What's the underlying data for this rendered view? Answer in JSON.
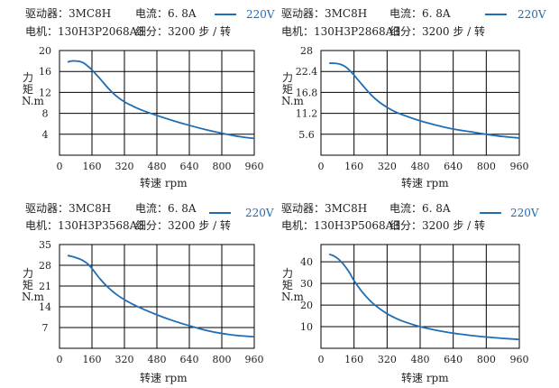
{
  "chart_data": [
    {
      "type": "line",
      "header": {
        "driver": "驱动器：3MC8H",
        "current": "电流：6. 8A",
        "motor": "电机：130H3P2068A3",
        "subdivision": "细分：3200 步 / 转"
      },
      "series": [
        {
          "name": "220V",
          "color": "#1f6db5",
          "x": [
            40,
            60,
            80,
            100,
            120,
            140,
            160,
            200,
            240,
            280,
            320,
            360,
            400,
            480,
            560,
            640,
            720,
            800,
            880,
            960
          ],
          "y": [
            17.8,
            18.0,
            18.0,
            17.9,
            17.6,
            17.0,
            16.3,
            14.6,
            12.8,
            11.3,
            10.2,
            9.4,
            8.7,
            7.6,
            6.6,
            5.7,
            4.9,
            4.2,
            3.6,
            3.2
          ]
        }
      ],
      "xlabel": "转速  rpm",
      "ylabel": "力矩  N.m",
      "xticks": [
        0,
        160,
        320,
        480,
        640,
        800,
        960
      ],
      "yticks": [
        4,
        8,
        12,
        16,
        20
      ],
      "xlim": [
        0,
        960
      ],
      "ylim": [
        0,
        20
      ]
    },
    {
      "type": "line",
      "header": {
        "driver": "驱动器：3MC8H",
        "current": "电流：6. 8A",
        "motor": "电机：130H3P2868A3",
        "subdivision": "细分：3200 步 / 转"
      },
      "series": [
        {
          "name": "220V",
          "color": "#1f6db5",
          "x": [
            40,
            60,
            80,
            100,
            120,
            140,
            160,
            200,
            240,
            280,
            320,
            360,
            400,
            480,
            560,
            640,
            720,
            800,
            880,
            960
          ],
          "y": [
            24.6,
            24.6,
            24.5,
            24.2,
            23.6,
            22.6,
            21.4,
            18.8,
            16.3,
            14.3,
            12.8,
            11.6,
            10.7,
            9.2,
            8.0,
            7.0,
            6.3,
            5.6,
            5.0,
            4.6
          ]
        }
      ],
      "xlabel": "转速  rpm",
      "ylabel": "力矩  N.m",
      "xticks": [
        0,
        160,
        320,
        480,
        640,
        800,
        960
      ],
      "yticks": [
        5.6,
        11.2,
        16.8,
        22.4,
        28
      ],
      "xlim": [
        0,
        960
      ],
      "ylim": [
        0,
        28
      ]
    },
    {
      "type": "line",
      "header": {
        "driver": "驱动器：3MC8H",
        "current": "电流：6. 8A",
        "motor": "电机：130H3P3568A3",
        "subdivision": "细分：3200 步 / 转"
      },
      "series": [
        {
          "name": "220V",
          "color": "#1f6db5",
          "x": [
            40,
            60,
            80,
            100,
            120,
            140,
            160,
            200,
            240,
            280,
            320,
            360,
            400,
            480,
            560,
            640,
            720,
            800,
            880,
            960
          ],
          "y": [
            31.3,
            31.0,
            30.6,
            30.1,
            29.4,
            28.4,
            26.9,
            23.4,
            20.5,
            18.2,
            16.4,
            14.9,
            13.6,
            11.3,
            9.3,
            7.6,
            6.1,
            5.0,
            4.3,
            3.9
          ]
        }
      ],
      "xlabel": "转速  rpm",
      "ylabel": "力矩  N.m",
      "xticks": [
        0,
        160,
        320,
        480,
        640,
        800,
        960
      ],
      "yticks": [
        7,
        14,
        21,
        28,
        35
      ],
      "xlim": [
        0,
        960
      ],
      "ylim": [
        0,
        35
      ]
    },
    {
      "type": "line",
      "header": {
        "driver": "驱动器：3MC8H",
        "current": "电流：6. 8A",
        "motor": "电机：130H3P5068A3",
        "subdivision": "细分：3200 步 / 转"
      },
      "series": [
        {
          "name": "220V",
          "color": "#1f6db5",
          "x": [
            40,
            60,
            80,
            100,
            120,
            140,
            160,
            200,
            240,
            280,
            320,
            360,
            400,
            480,
            560,
            640,
            720,
            800,
            880,
            960
          ],
          "y": [
            43.5,
            42.8,
            41.6,
            39.8,
            37.5,
            34.7,
            31.3,
            26.0,
            21.8,
            18.6,
            16.0,
            14.0,
            12.4,
            10.0,
            8.3,
            7.0,
            6.0,
            5.2,
            4.6,
            4.1
          ]
        }
      ],
      "xlabel": "转速  rpm",
      "ylabel": "力矩  N.m",
      "xticks": [
        0,
        160,
        320,
        480,
        640,
        800,
        960
      ],
      "yticks": [
        10,
        20,
        30,
        40
      ],
      "xlim": [
        0,
        960
      ],
      "ylim": [
        0,
        48
      ]
    }
  ]
}
